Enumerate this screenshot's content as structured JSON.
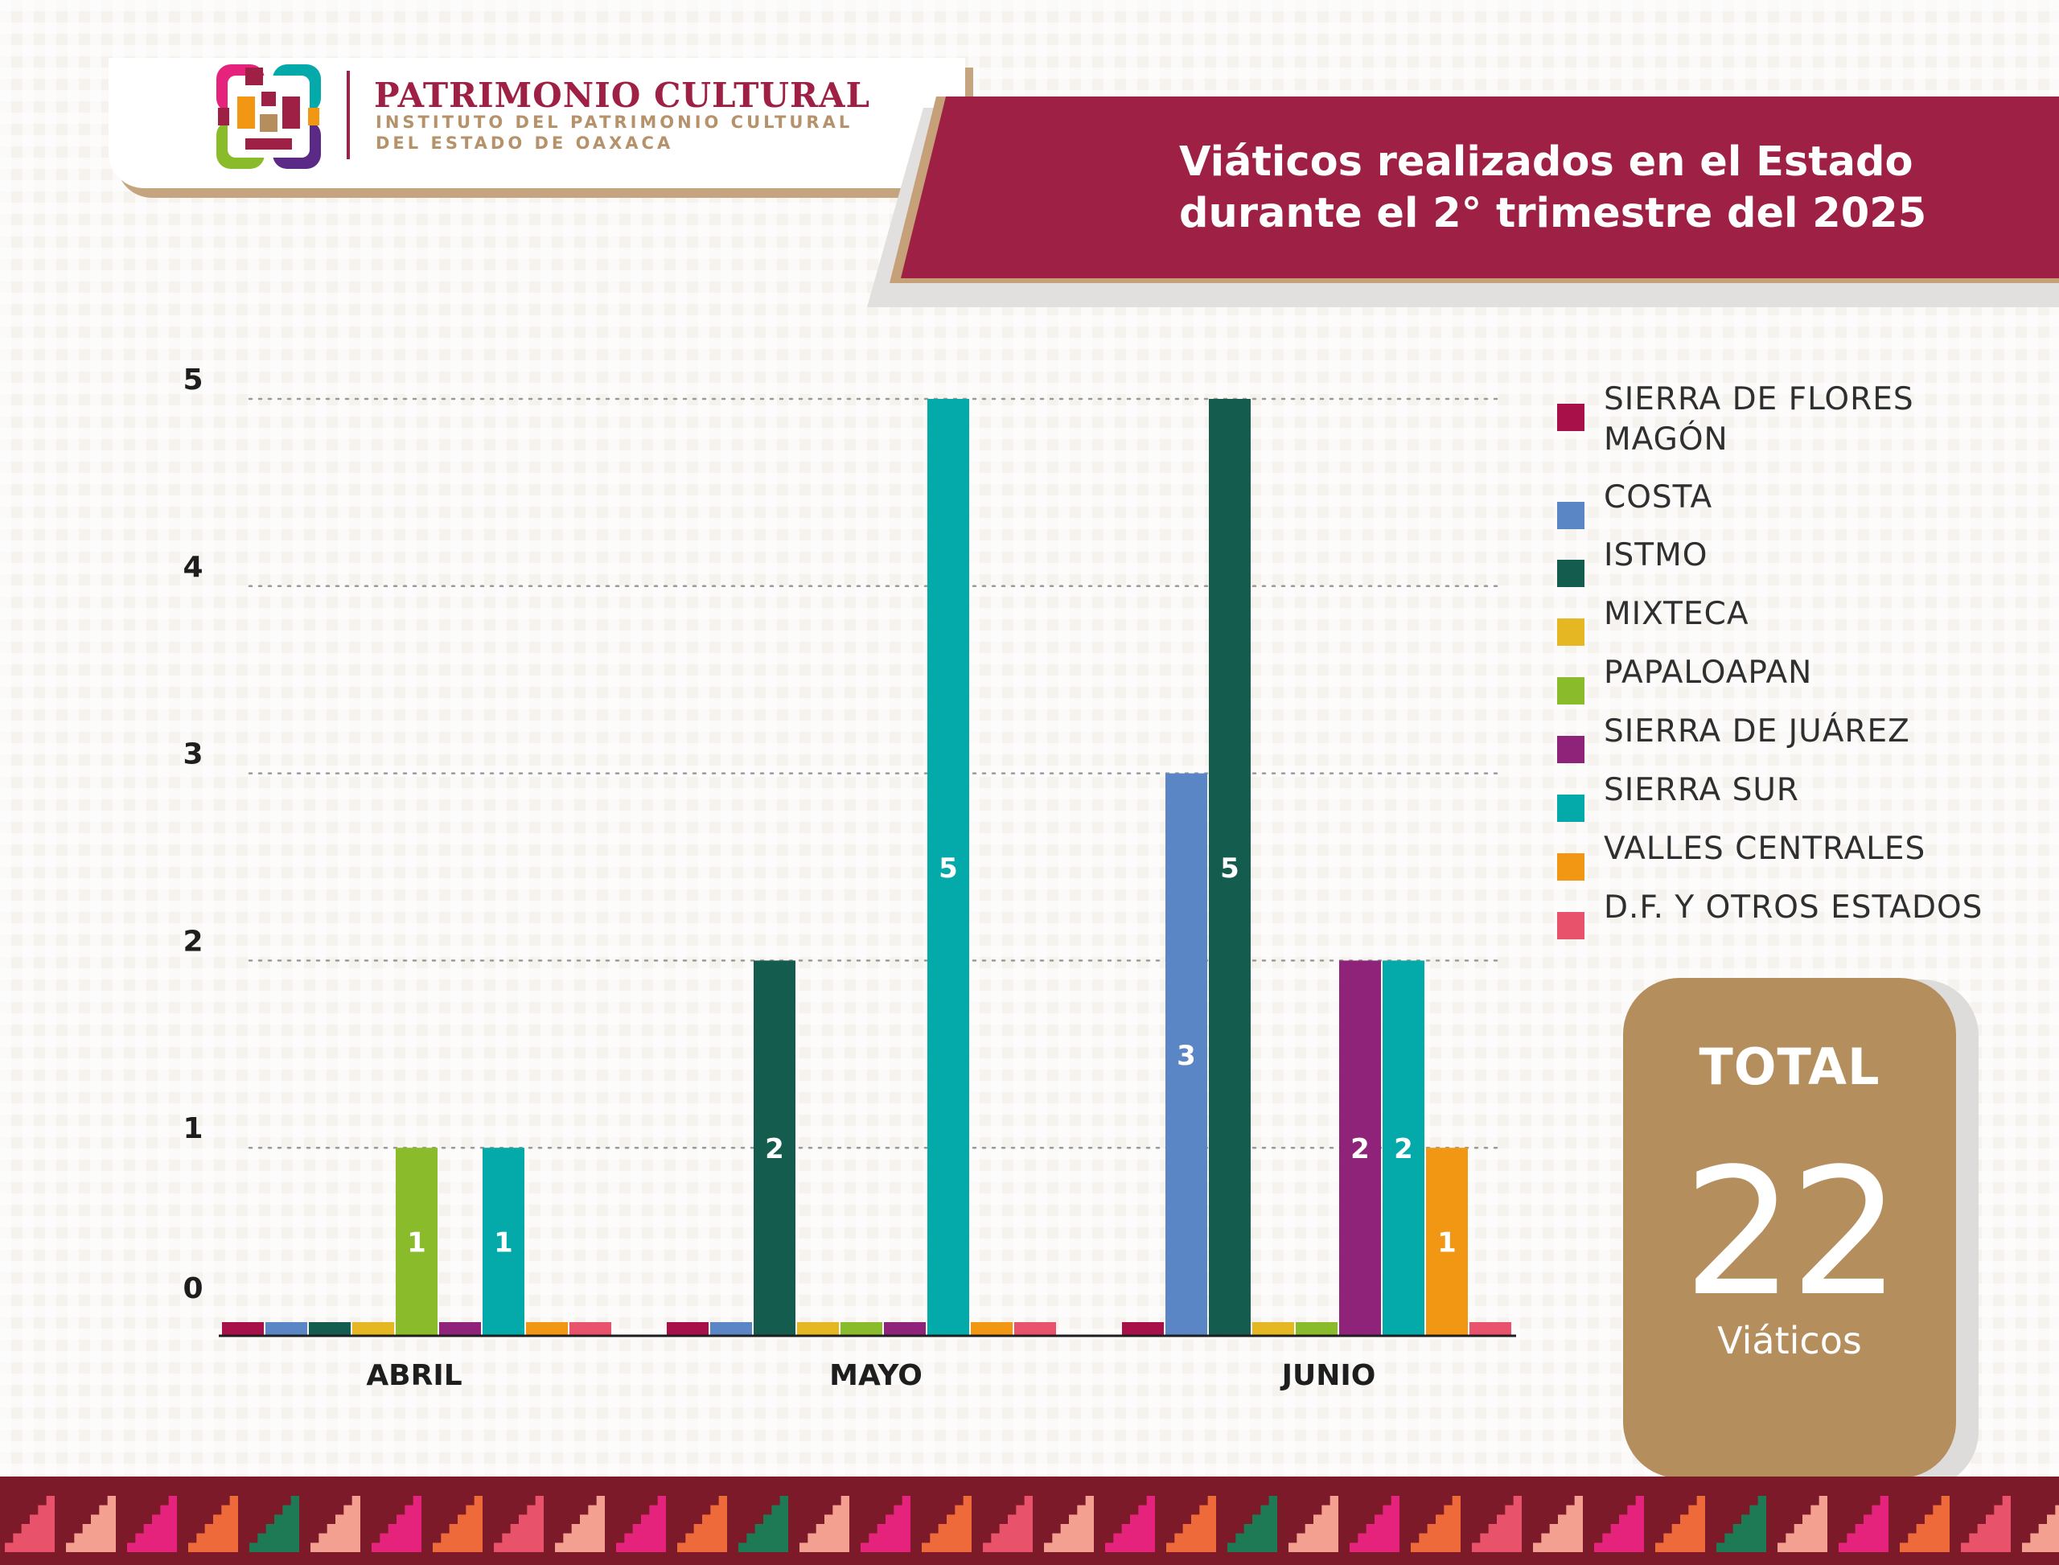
{
  "header": {
    "org_name": "PATRIMONIO CULTURAL",
    "org_sub_1": "INSTITUTO DEL PATRIMONIO CULTURAL",
    "org_sub_2": "DEL ESTADO DE OAXACA",
    "title_line_1": "Viáticos realizados en el Estado",
    "title_line_2": "durante el 2° trimestre del 2025"
  },
  "total": {
    "label": "TOTAL",
    "value": "22",
    "unit": "Viáticos"
  },
  "colors": {
    "brand": "#9e2044",
    "gold": "#b58e5e"
  },
  "chart_data": {
    "type": "bar",
    "categories": [
      "ABRIL",
      "MAYO",
      "JUNIO"
    ],
    "ylim": [
      0,
      5
    ],
    "yticks": [
      0,
      1,
      2,
      3,
      4,
      5
    ],
    "grid": true,
    "legend_position": "right",
    "series": [
      {
        "name": "SIERRA DE FLORES MAGÓN",
        "color": "#a8104a",
        "values": [
          0,
          0,
          0
        ]
      },
      {
        "name": "COSTA",
        "color": "#5b86c5",
        "values": [
          0,
          0,
          3
        ]
      },
      {
        "name": "ISTMO",
        "color": "#145c4e",
        "values": [
          0,
          2,
          5
        ]
      },
      {
        "name": "MIXTECA",
        "color": "#e5b823",
        "values": [
          0,
          0,
          0
        ]
      },
      {
        "name": "PAPALOAPAN",
        "color": "#8abb2a",
        "values": [
          1,
          0,
          0
        ]
      },
      {
        "name": "SIERRA DE JUÁREZ",
        "color": "#8e2379",
        "values": [
          0,
          0,
          2
        ]
      },
      {
        "name": "SIERRA SUR",
        "color": "#04aaa9",
        "values": [
          1,
          5,
          2
        ]
      },
      {
        "name": "VALLES CENTRALES",
        "color": "#f29714",
        "values": [
          0,
          0,
          1
        ]
      },
      {
        "name": "D.F. Y OTROS ESTADOS",
        "color": "#e8536b",
        "values": [
          0,
          0,
          0
        ]
      }
    ]
  }
}
